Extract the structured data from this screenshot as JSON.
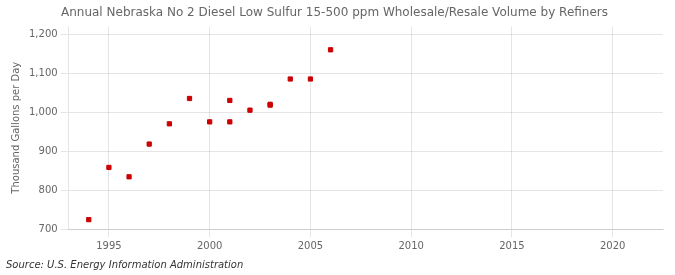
{
  "chart_data": {
    "type": "scatter",
    "title": "Annual Nebraska No 2 Diesel Low Sulfur 15-500 ppm Wholesale/Resale Volume by Refiners",
    "ylabel": "Thousand Gallons per Day",
    "annotations": [
      "Source: U.S. Energy Information Administration"
    ],
    "x": [
      1994,
      1995,
      1996,
      1997,
      1998,
      1999,
      2000,
      2001,
      2001,
      2002,
      2003,
      2003,
      2004,
      2005,
      2006
    ],
    "values": [
      724,
      858,
      834,
      918,
      970,
      1035,
      975,
      1030,
      975,
      1005,
      1018,
      1020,
      1085,
      1085,
      1160
    ],
    "color": "#cc0000",
    "marker": "square",
    "xlim": [
      1993.0,
      2022.5
    ],
    "ylim": [
      700,
      1220
    ],
    "xticks": [
      1995,
      2000,
      2005,
      2010,
      2015,
      2020
    ],
    "yticks": [
      700,
      800,
      900,
      {
        "value": 1000,
        "label": "1,000"
      },
      {
        "value": 1100,
        "label": "1,100"
      },
      {
        "value": 1200,
        "label": "1,200"
      }
    ],
    "grid": true
  }
}
